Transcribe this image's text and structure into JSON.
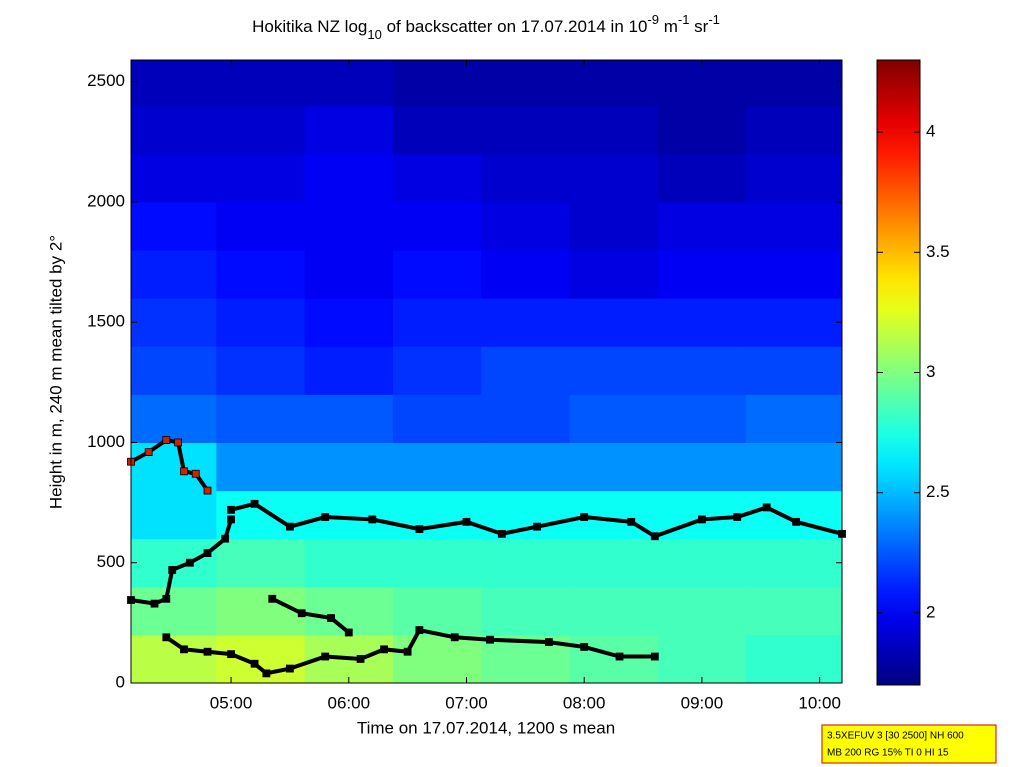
{
  "chart_data": {
    "type": "heatmap",
    "title_parts": [
      "Hokitika NZ log",
      "10",
      " of backscatter on 17.07.2014 in 10",
      "-9",
      " m",
      "-1",
      " sr",
      "-1"
    ],
    "xlabel": "Time on 17.07.2014, 1200 s mean",
    "ylabel": "Height in m, 240 m mean tilted by 2°",
    "xlim": [
      4.15,
      10.19
    ],
    "xticks": [
      {
        "value": 5,
        "label": "05:00"
      },
      {
        "value": 6,
        "label": "06:00"
      },
      {
        "value": 7,
        "label": "07:00"
      },
      {
        "value": 8,
        "label": "08:00"
      },
      {
        "value": 9,
        "label": "09:00"
      },
      {
        "value": 10,
        "label": "10:00"
      }
    ],
    "ylim": [
      0,
      2590
    ],
    "yticks": [
      0,
      500,
      1000,
      1500,
      2000,
      2500
    ],
    "clim": [
      1.7,
      4.3
    ],
    "cticks": [
      2,
      2.5,
      3,
      3.5,
      4
    ],
    "colormap": "jet",
    "grid_x": [
      4.5,
      5.25,
      6,
      6.75,
      7.5,
      8.25,
      9,
      9.75
    ],
    "grid_y": [
      100,
      300,
      500,
      700,
      900,
      1100,
      1300,
      1500,
      1700,
      1900,
      2100,
      2300,
      2500
    ],
    "z": [
      [
        3.15,
        3.2,
        3.1,
        3.0,
        2.95,
        2.9,
        2.85,
        2.8
      ],
      [
        2.95,
        3.0,
        2.95,
        2.9,
        2.85,
        2.85,
        2.85,
        2.85
      ],
      [
        2.8,
        2.85,
        2.8,
        2.8,
        2.8,
        2.8,
        2.8,
        2.8
      ],
      [
        2.6,
        2.7,
        2.7,
        2.7,
        2.7,
        2.7,
        2.7,
        2.7
      ],
      [
        2.6,
        2.4,
        2.4,
        2.4,
        2.4,
        2.4,
        2.4,
        2.4
      ],
      [
        2.3,
        2.25,
        2.25,
        2.2,
        2.2,
        2.25,
        2.25,
        2.3
      ],
      [
        2.2,
        2.15,
        2.1,
        2.15,
        2.2,
        2.2,
        2.2,
        2.2
      ],
      [
        2.15,
        2.1,
        2.05,
        2.1,
        2.1,
        2.1,
        2.1,
        2.1
      ],
      [
        2.1,
        2.05,
        2.0,
        2.05,
        2.0,
        1.95,
        2.0,
        2.0
      ],
      [
        2.05,
        2.0,
        2.0,
        2.0,
        1.95,
        1.9,
        1.95,
        1.95
      ],
      [
        1.95,
        1.95,
        2.0,
        1.95,
        1.9,
        1.9,
        1.85,
        1.9
      ],
      [
        1.9,
        1.9,
        1.95,
        1.85,
        1.85,
        1.85,
        1.8,
        1.85
      ],
      [
        1.85,
        1.85,
        1.85,
        1.8,
        1.8,
        1.8,
        1.8,
        1.8
      ]
    ],
    "series": [
      {
        "color": "#000000",
        "x": [
          5.0,
          5.2,
          5.5,
          5.8,
          6.2,
          6.6,
          7.0,
          7.3,
          7.6,
          8.0,
          8.4,
          8.6,
          9.0,
          9.3,
          9.55,
          9.8,
          10.19
        ],
        "values": [
          720,
          745,
          650,
          690,
          680,
          640,
          670,
          620,
          650,
          690,
          670,
          610,
          680,
          690,
          730,
          670,
          620
        ]
      },
      {
        "color": "#cc2200",
        "x": [
          4.15,
          4.3,
          4.45,
          4.55,
          4.6,
          4.7,
          4.8
        ],
        "values": [
          920,
          960,
          1010,
          1000,
          880,
          870,
          800
        ]
      },
      {
        "color": "#000000",
        "x": [
          4.15,
          4.35,
          4.45,
          4.5,
          4.65,
          4.8,
          4.95,
          5.0
        ],
        "values": [
          345,
          330,
          350,
          470,
          500,
          540,
          600,
          680
        ]
      },
      {
        "color": "#000000",
        "x": [
          5.35,
          5.6,
          5.85,
          6.0
        ],
        "values": [
          350,
          290,
          270,
          210
        ]
      },
      {
        "color": "#000000",
        "x": [
          4.45,
          4.6,
          4.8,
          5.0,
          5.2,
          5.3,
          5.5,
          5.8,
          6.1,
          6.3,
          6.5,
          6.6,
          6.9,
          7.2,
          7.7,
          8.0,
          8.3,
          8.6
        ],
        "values": [
          190,
          140,
          130,
          120,
          80,
          40,
          60,
          110,
          100,
          140,
          130,
          220,
          190,
          180,
          170,
          150,
          110,
          110
        ]
      }
    ],
    "info_lines": [
      "3.5XEFUV 3 [30 2500] NH 600",
      "MB 200 RG 15% TI 0 HI 15"
    ]
  }
}
